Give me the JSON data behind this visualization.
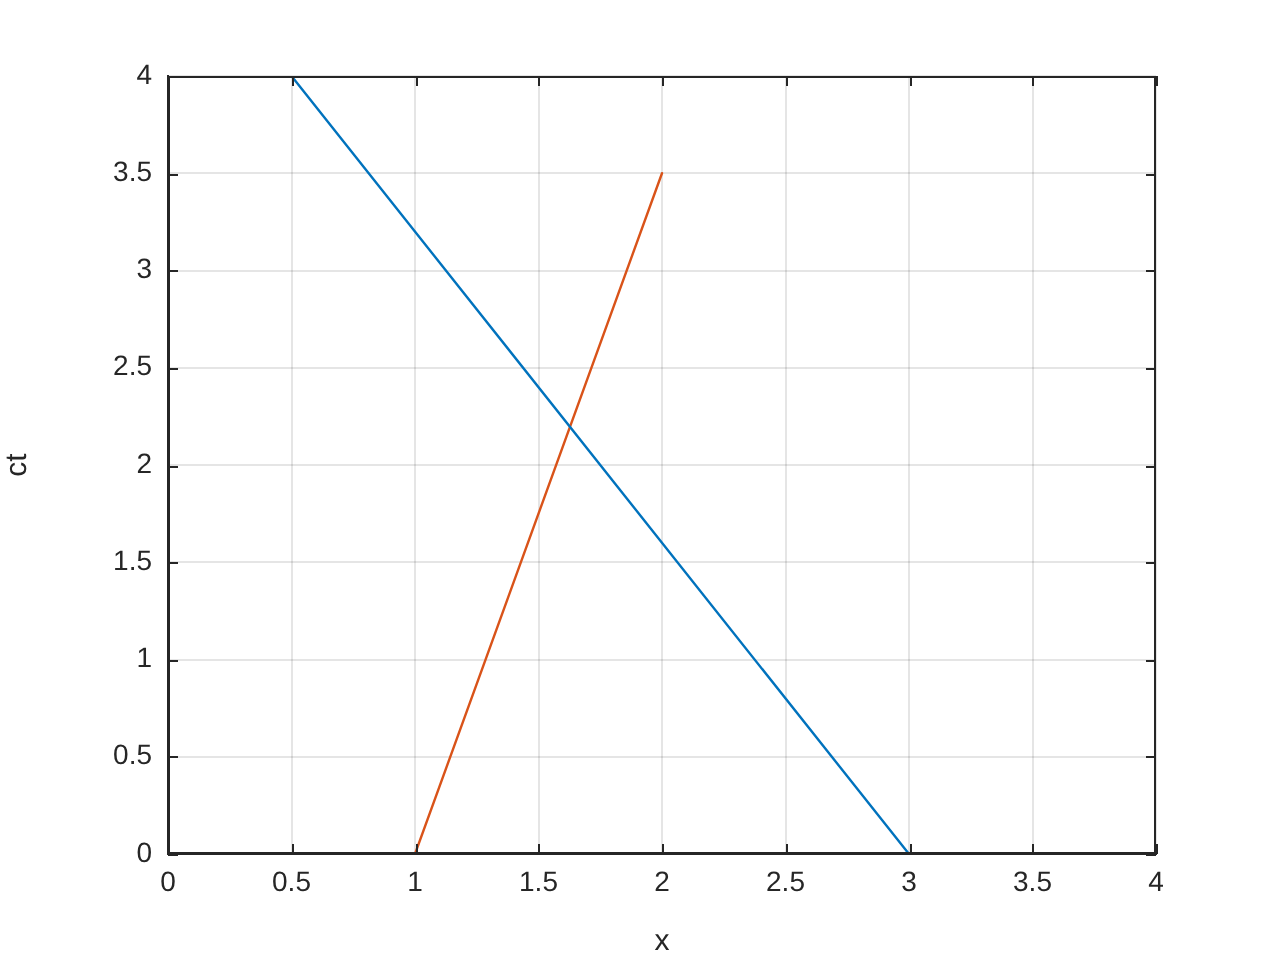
{
  "chart_data": {
    "type": "line",
    "xlabel": "x",
    "ylabel": "ct",
    "series": [
      {
        "color": "#0072bd",
        "x": [
          0.5,
          3
        ],
        "values": [
          4,
          0
        ]
      },
      {
        "color": "#d95319",
        "x": [
          1,
          2
        ],
        "values": [
          0,
          3.5
        ]
      }
    ],
    "xlim": [
      0,
      4
    ],
    "ylim": [
      0,
      4
    ],
    "xticks": [
      0,
      0.5,
      1,
      1.5,
      2,
      2.5,
      3,
      3.5,
      4
    ],
    "yticks": [
      0,
      0.5,
      1,
      1.5,
      2,
      2.5,
      3,
      3.5,
      4
    ],
    "grid": true
  }
}
